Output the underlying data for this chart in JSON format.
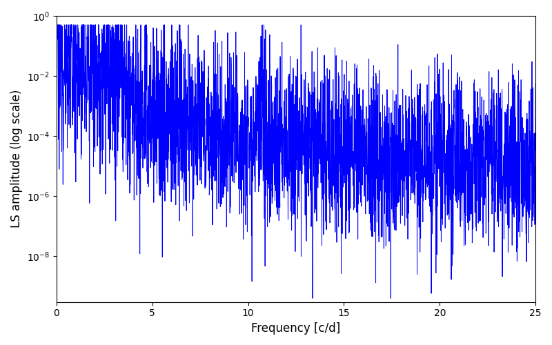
{
  "xlabel": "Frequency [c/d]",
  "ylabel": "LS amplitude (log scale)",
  "xlim": [
    0,
    25
  ],
  "ylim": [
    3e-10,
    1
  ],
  "line_color": "#0000ff",
  "line_width": 0.7,
  "figsize": [
    8.0,
    5.0
  ],
  "dpi": 100,
  "background_color": "#ffffff",
  "seed": 12345,
  "n_freqs": 3000,
  "freq_max": 25.0,
  "noise_std_low": 1.2,
  "noise_std_high": 1.5
}
